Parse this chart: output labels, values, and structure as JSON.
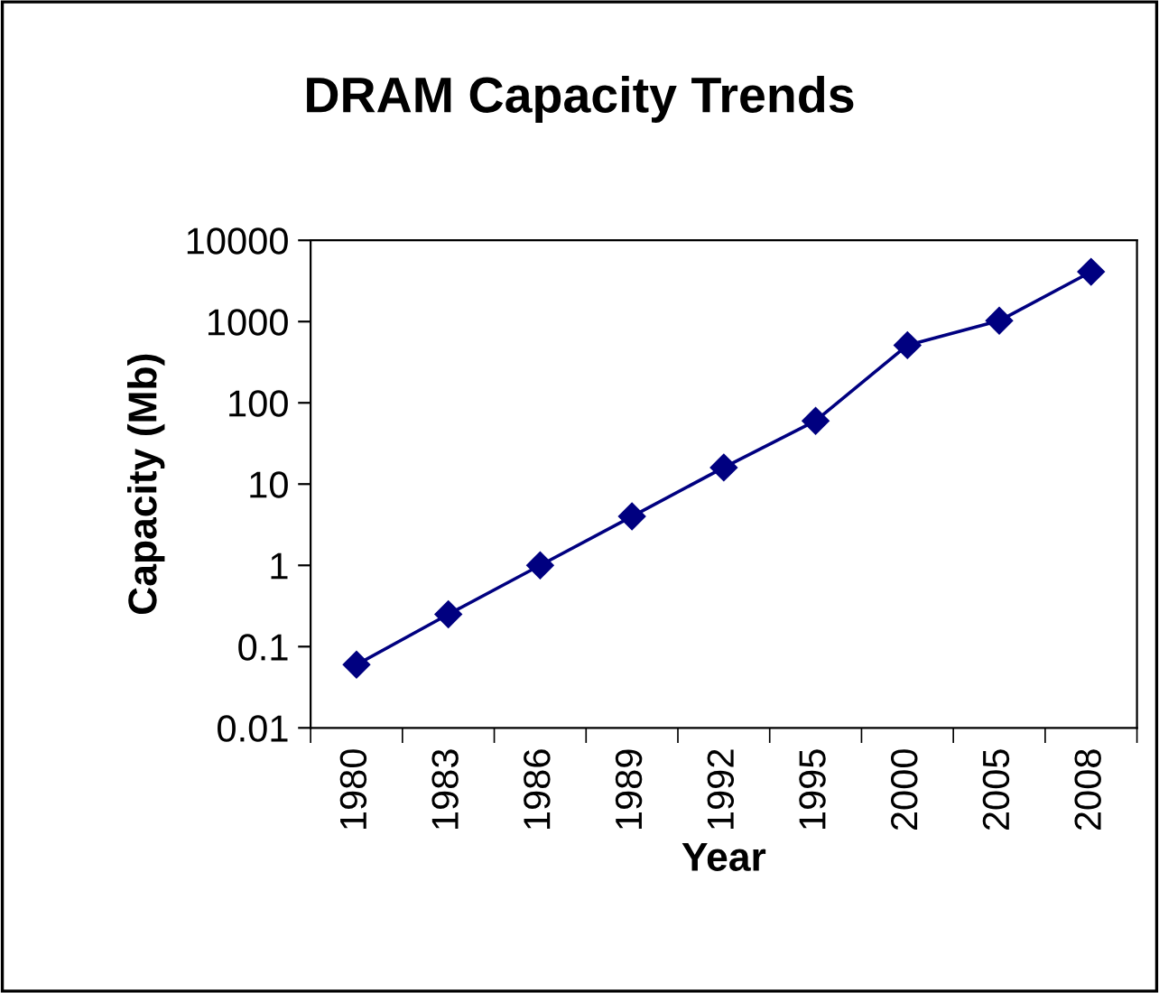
{
  "chart_data": {
    "type": "line",
    "title": "DRAM Capacity Trends",
    "xlabel": "Year",
    "ylabel": "Capacity (Mb)",
    "categories": [
      "1980",
      "1983",
      "1986",
      "1989",
      "1992",
      "1995",
      "2000",
      "2005",
      "2008"
    ],
    "series": [
      {
        "color": "#000080",
        "values": [
          0.06,
          0.25,
          1,
          4,
          16,
          60,
          512,
          1024,
          4096
        ]
      }
    ],
    "log": "y",
    "ylim": [
      0.01,
      10000
    ],
    "yticks": [
      0.01,
      0.1,
      1,
      10,
      100,
      1000,
      10000
    ],
    "marker": "diamond",
    "line_style": "solid",
    "grid": false
  }
}
